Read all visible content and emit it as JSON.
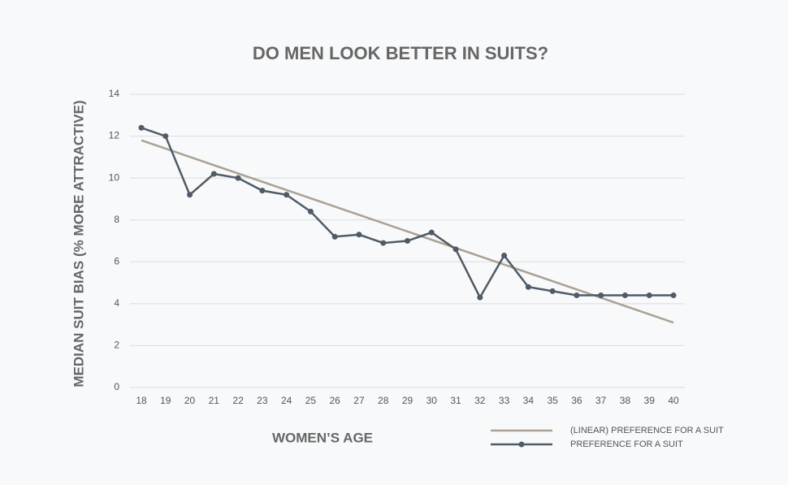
{
  "chart_data": {
    "type": "line",
    "title": "DO MEN LOOK BETTER IN SUITS?",
    "x_label": "WOMEN’S AGE",
    "y_label": "MEDIAN SUIT BIAS (% MORE ATTRACTIVE)",
    "x": [
      18,
      19,
      20,
      21,
      22,
      23,
      24,
      25,
      26,
      27,
      28,
      29,
      30,
      31,
      32,
      33,
      34,
      35,
      36,
      37,
      38,
      39,
      40
    ],
    "xlim": [
      18,
      40
    ],
    "xticks": [
      18,
      19,
      20,
      21,
      22,
      23,
      24,
      25,
      26,
      27,
      28,
      29,
      30,
      31,
      32,
      33,
      34,
      35,
      36,
      37,
      38,
      39,
      40
    ],
    "ylim": [
      0,
      14
    ],
    "yticks": [
      0,
      2,
      4,
      6,
      8,
      10,
      12,
      14
    ],
    "grid": true,
    "legend": "bottom-right",
    "series": [
      {
        "name": "(LINEAR) PREFERENCE FOR A SUIT",
        "color": "#aaa292",
        "markers": false,
        "x": [
          18,
          40
        ],
        "values": [
          11.8,
          3.1
        ]
      },
      {
        "name": "PREFERENCE FOR A SUIT",
        "color": "#4f5b66",
        "markers": true,
        "values": [
          12.4,
          12.0,
          9.2,
          10.2,
          10.0,
          9.4,
          9.2,
          8.4,
          7.2,
          7.3,
          6.9,
          7.0,
          7.4,
          6.6,
          4.3,
          6.3,
          4.8,
          4.6,
          4.4,
          4.4,
          4.4,
          4.4,
          4.4
        ]
      }
    ]
  }
}
